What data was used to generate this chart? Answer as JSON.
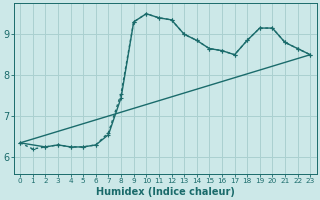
{
  "xlabel": "Humidex (Indice chaleur)",
  "bg_color": "#cce8e8",
  "grid_color": "#aad0d0",
  "line_color": "#1a6b6b",
  "xlim": [
    -0.5,
    23.5
  ],
  "ylim": [
    5.6,
    9.75
  ],
  "xticks": [
    0,
    1,
    2,
    3,
    4,
    5,
    6,
    7,
    8,
    9,
    10,
    11,
    12,
    13,
    14,
    15,
    16,
    17,
    18,
    19,
    20,
    21,
    22,
    23
  ],
  "yticks": [
    6,
    7,
    8,
    9
  ],
  "line1_x": [
    0,
    1,
    2,
    3,
    4,
    5,
    6,
    7,
    8,
    9,
    10,
    11,
    12,
    13,
    14,
    15,
    16,
    17,
    18,
    19,
    20,
    21,
    22,
    23
  ],
  "line1_y": [
    6.35,
    6.2,
    6.25,
    6.3,
    6.25,
    6.25,
    6.3,
    6.6,
    7.55,
    9.3,
    9.5,
    9.4,
    9.35,
    9.0,
    8.85,
    8.65,
    8.6,
    8.5,
    8.85,
    9.15,
    9.15,
    8.8,
    8.65,
    8.5
  ],
  "line2_x": [
    0,
    2,
    3,
    4,
    5,
    6,
    7,
    8,
    9,
    10,
    11,
    12,
    13,
    14,
    15,
    16,
    17,
    18,
    19,
    20,
    21,
    22,
    23
  ],
  "line2_y": [
    6.35,
    6.25,
    6.3,
    6.25,
    6.25,
    6.3,
    6.55,
    7.45,
    9.3,
    9.5,
    9.4,
    9.35,
    9.0,
    8.85,
    8.65,
    8.6,
    8.5,
    8.85,
    9.15,
    9.15,
    8.8,
    8.65,
    8.5
  ],
  "line3_x": [
    0,
    23
  ],
  "line3_y": [
    6.35,
    8.5
  ]
}
